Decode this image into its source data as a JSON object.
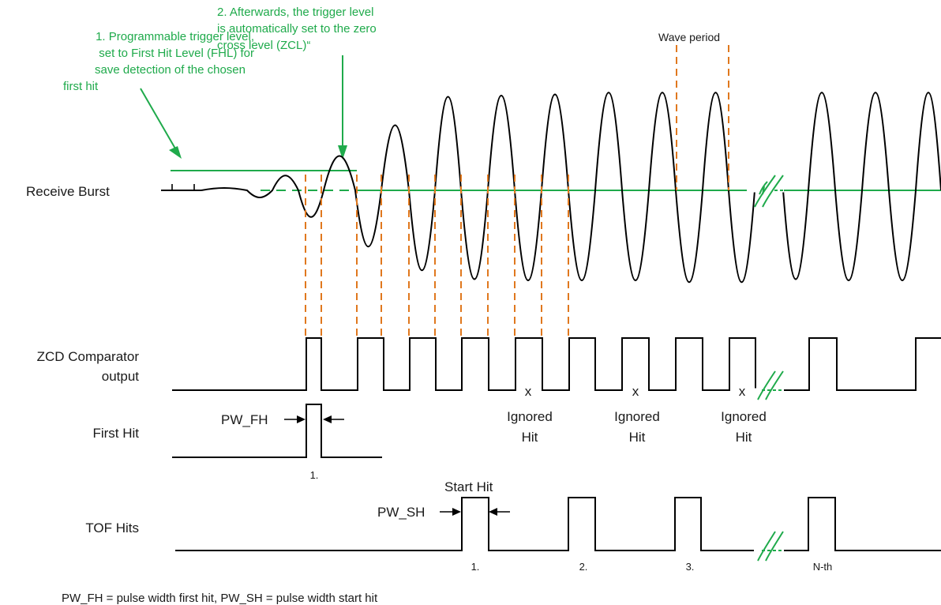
{
  "notes": {
    "first_hit_level": [
      "1. Programmable trigger level,",
      "set to First Hit Level (FHL) for",
      "save detection of the chosen",
      "first hit"
    ],
    "zero_cross": [
      "2. Afterwards, the trigger level",
      "is automatically set to the zero",
      "cross level (ZCL)“"
    ]
  },
  "wave_period_label": "Wave period",
  "rows": {
    "receive_burst": "Receive Burst",
    "zcd_line1": "ZCD Comparator",
    "zcd_line2": "output",
    "first_hit": "First Hit",
    "tof_hits": "TOF Hits"
  },
  "pulse_width": {
    "first_hit": "PW_FH",
    "start_hit": "PW_SH"
  },
  "start_hit_label": "Start Hit",
  "ignored": [
    {
      "mark": "x",
      "line1": "Ignored",
      "line2": "Hit"
    },
    {
      "mark": "x",
      "line1": "Ignored",
      "line2": "Hit"
    },
    {
      "mark": "x",
      "line1": "Ignored",
      "line2": "Hit"
    }
  ],
  "first_hit_number": "1.",
  "tof_numbers": [
    "1.",
    "2.",
    "3.",
    "N-th"
  ],
  "footer": "PW_FH = pulse width first hit, PW_SH = pulse width start hit",
  "colors": {
    "annotation": "#1faa4b",
    "zero_cross_marker": "#e0781e",
    "signal": "#000000"
  }
}
